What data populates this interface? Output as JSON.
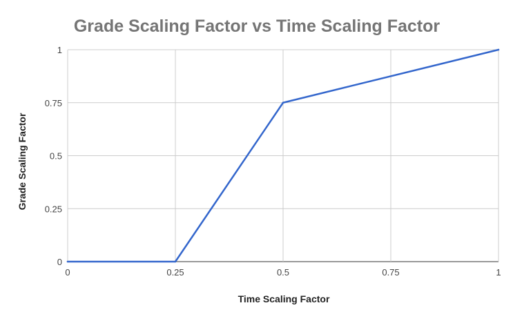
{
  "chart_data": {
    "type": "line",
    "title": "Grade Scaling Factor vs Time Scaling Factor",
    "xlabel": "Time Scaling Factor",
    "ylabel": "Grade Scaling Factor",
    "xlim": [
      0,
      1
    ],
    "ylim": [
      0,
      1
    ],
    "x_ticks": [
      "0",
      "0.25",
      "0.5",
      "0.75",
      "1"
    ],
    "y_ticks": [
      "0",
      "0.25",
      "0.5",
      "0.75",
      "1"
    ],
    "grid": true,
    "series": [
      {
        "color": "#3366cc",
        "x": [
          0,
          0.25,
          0.5,
          1
        ],
        "y": [
          0,
          0,
          0.75,
          1
        ]
      }
    ]
  }
}
